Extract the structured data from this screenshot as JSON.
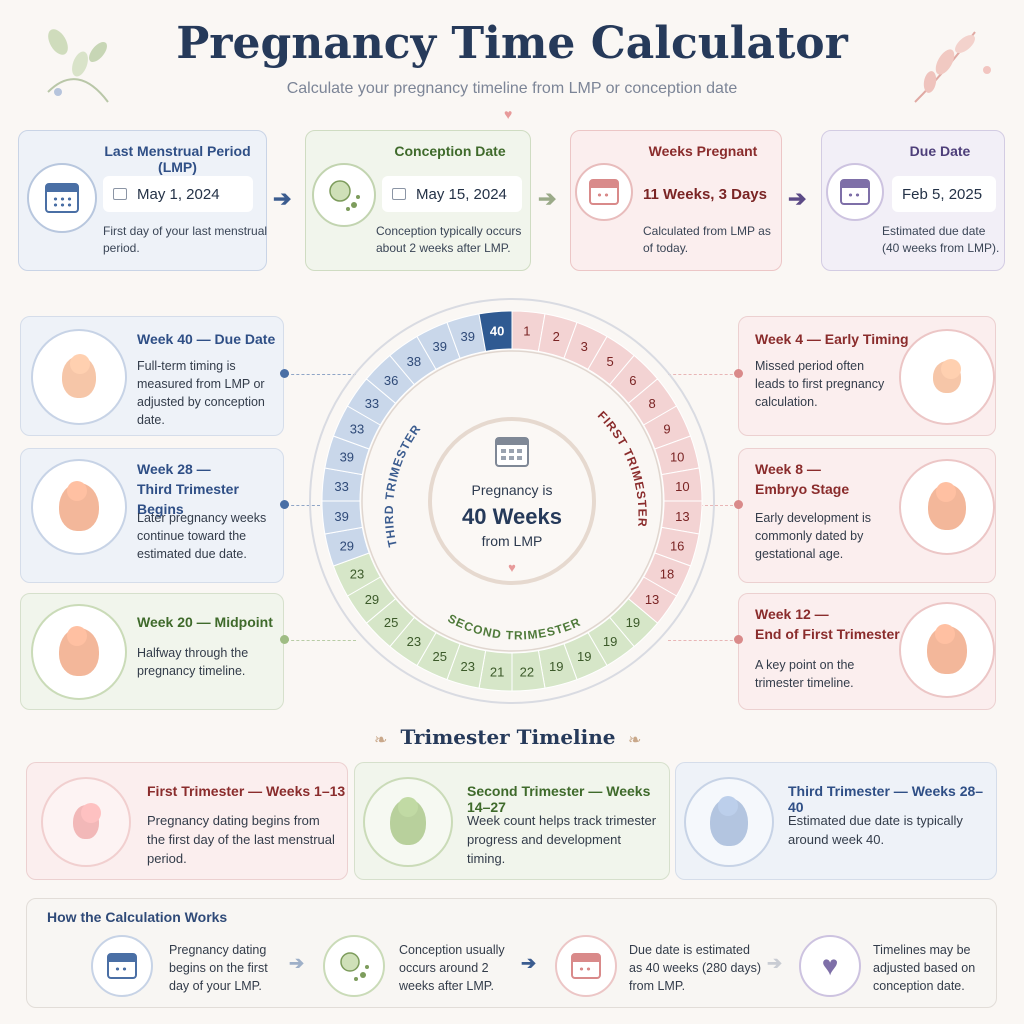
{
  "header": {
    "title": "Pregnancy Time Calculator",
    "subtitle": "Calculate your pregnancy timeline from LMP or conception date"
  },
  "top_cards": [
    {
      "title": "Last Menstrual Period (LMP)",
      "value": "May 1, 2024",
      "desc": "First day of your last menstrual period.",
      "icon": "calendar-icon",
      "accent": "#3b5c8f"
    },
    {
      "title": "Conception Date",
      "value": "May 15, 2024",
      "desc": "Conception typically occurs about 2 weeks after LMP.",
      "icon": "cell-icon",
      "accent": "#4f7a3a"
    },
    {
      "title": "Weeks Pregnant",
      "value": "11 Weeks, 3 Days",
      "desc": "Calculated from LMP as of today.",
      "icon": "calendar-icon",
      "accent": "#8a2c2c"
    },
    {
      "title": "Due Date",
      "value": "Feb 5, 2025",
      "desc": "Estimated due date (40 weeks from LMP).",
      "icon": "calendar-icon",
      "accent": "#5b4a86"
    }
  ],
  "left_milestones": [
    {
      "title": "Week 40 — Due Date",
      "desc": "Full-term timing is measured from LMP or adjusted by conception date."
    },
    {
      "title": "Week 28 —\nThird Trimester Begins",
      "desc": "Later pregnancy weeks continue toward the estimated due date."
    },
    {
      "title": "Week 20 — Midpoint",
      "desc": "Halfway through the pregnancy timeline."
    }
  ],
  "right_milestones": [
    {
      "title": "Week 4 — Early Timing",
      "desc": "Missed period often leads to first pregnancy calculation."
    },
    {
      "title": "Week 8 —\nEmbryo Stage",
      "desc": "Early development is commonly dated by gestational age."
    },
    {
      "title": "Week 12 —\nEnd of First Trimester",
      "desc": "A key point on the trimester timeline."
    }
  ],
  "wheel": {
    "center_line1": "Pregnancy is",
    "center_line2": "40 Weeks",
    "center_line3": "from LMP",
    "first_label": "FIRST TRIMESTER",
    "second_label": "SECOND TRIMESTER",
    "third_label": "THIRD TRIMESTER",
    "week_labels": [
      "1",
      "2",
      "3",
      "5",
      "6",
      "8",
      "9",
      "10",
      "10",
      "13",
      "16",
      "18",
      "13",
      "19",
      "19",
      "19",
      "19",
      "22",
      "21",
      "23",
      "25",
      "23",
      "25",
      "29",
      "23",
      "29",
      "39",
      "33",
      "39",
      "33",
      "33",
      "36",
      "38",
      "39",
      "39",
      "40"
    ],
    "colors": {
      "first": "#f3d3d3",
      "second": "#d6e6c8",
      "third": "#c9d7ea",
      "current": "#2f5a92"
    }
  },
  "trimester_section": {
    "title": "Trimester Timeline",
    "cards": [
      {
        "title": "First Trimester — Weeks 1–13",
        "desc": "Pregnancy dating begins from the first day of the last menstrual period."
      },
      {
        "title": "Second Trimester — Weeks 14–27",
        "desc": "Week count helps track trimester progress and development timing."
      },
      {
        "title": "Third Trimester — Weeks 28–40",
        "desc": "Estimated due date is typically around week 40."
      }
    ]
  },
  "how_it_works": {
    "title": "How the Calculation Works",
    "steps": [
      {
        "text": "Pregnancy dating begins on the first day of your LMP.",
        "icon": "calendar-icon"
      },
      {
        "text": "Conception usually occurs around 2 weeks after LMP.",
        "icon": "cell-icon"
      },
      {
        "text": "Due date is estimated as 40 weeks (280 days) from LMP.",
        "icon": "calendar-icon"
      },
      {
        "text": "Timelines may be adjusted based on conception date.",
        "icon": "heart-icon"
      }
    ]
  }
}
